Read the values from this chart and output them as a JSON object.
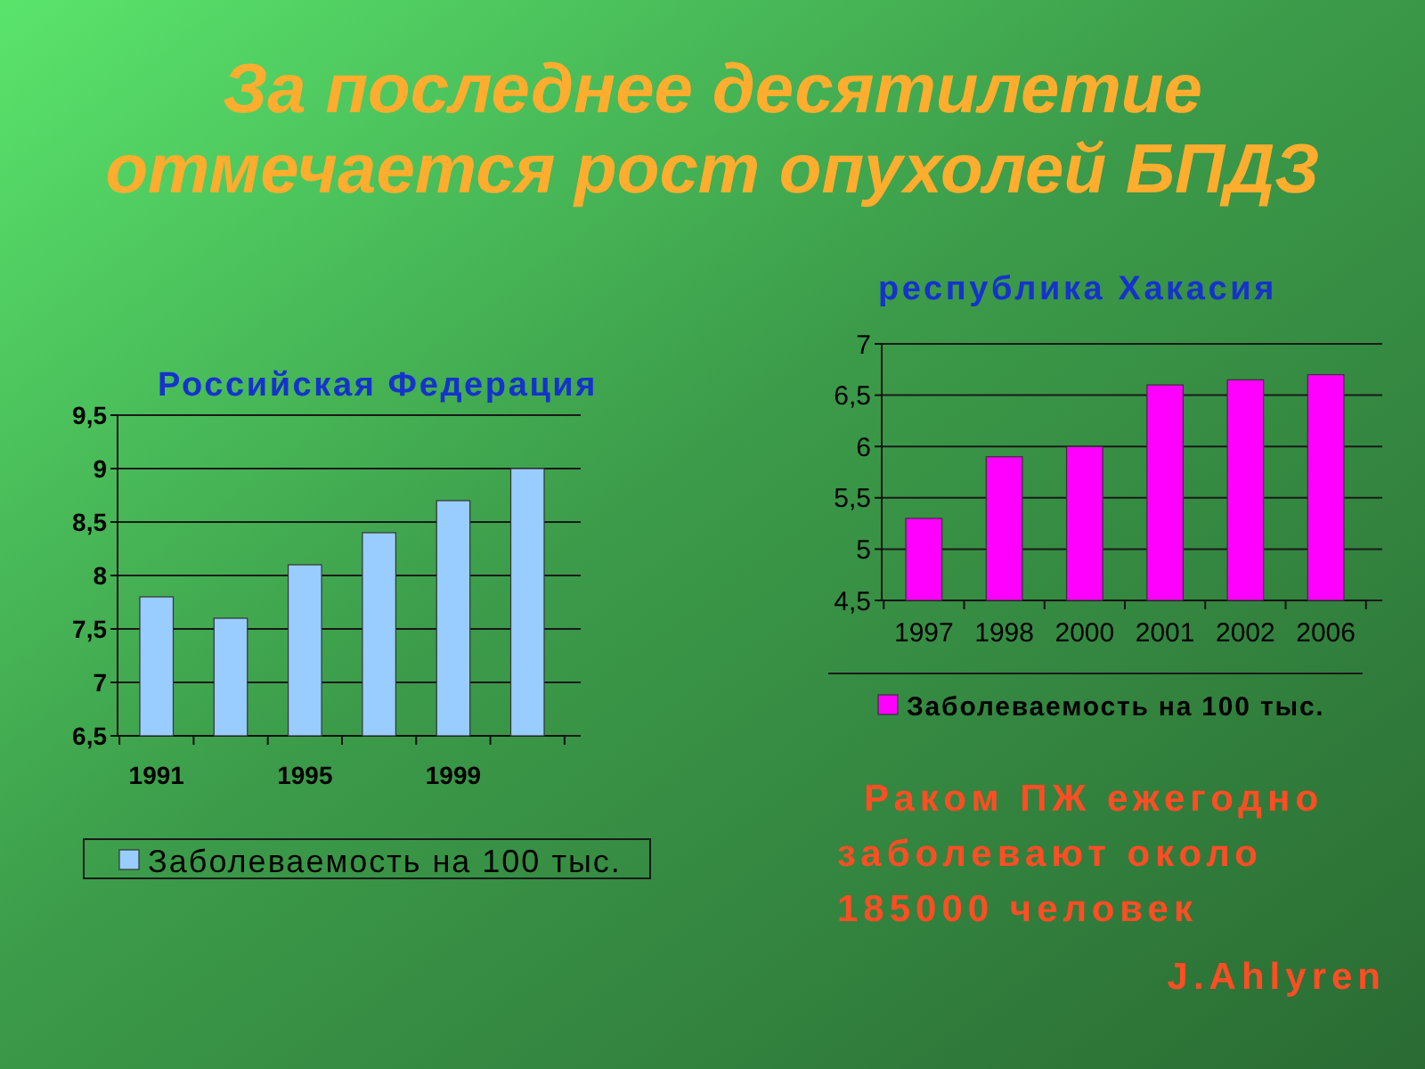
{
  "chart_data": [
    {
      "type": "other",
      "title": "За последнее десятилетие отмечается рост опухолей БПДЗ"
    },
    {
      "type": "bar",
      "title": "Российская Федерация",
      "categories": [
        "1991",
        null,
        "1995",
        null,
        "1999",
        null
      ],
      "series": [
        {
          "name": "Заболеваемость на 100 тыс.",
          "color": "#99ccff",
          "values": [
            7.8,
            7.6,
            8.1,
            8.4,
            8.7,
            9.0
          ]
        }
      ],
      "ylim": [
        6.5,
        9.5
      ],
      "yticks": [
        {
          "value": 6.5,
          "label": "6,5"
        },
        7,
        {
          "value": 7.5,
          "label": "7,5"
        },
        8,
        {
          "value": 8.5,
          "label": "8,5"
        },
        9,
        {
          "value": 9.5,
          "label": "9,5"
        }
      ],
      "grid": "y",
      "legend": "bottom"
    },
    {
      "type": "bar",
      "title": "республика Хакасия",
      "categories": [
        "1997",
        "1998",
        "2000",
        "2001",
        "2002",
        "2006"
      ],
      "series": [
        {
          "name": "Заболеваемость на 100 тыс.",
          "color": "#ff00ff",
          "values": [
            5.3,
            5.9,
            6.0,
            6.6,
            6.65,
            6.7
          ]
        }
      ],
      "ylim": [
        4.5,
        7
      ],
      "yticks": [
        {
          "value": 4.5,
          "label": "4,5"
        },
        5,
        {
          "value": 5.5,
          "label": "5,5"
        },
        6,
        {
          "value": 6.5,
          "label": "6,5"
        },
        7
      ],
      "grid": "y",
      "legend": "bottom",
      "annotations": [
        "Раком ПЖ ежегодно заболевают около 185000 человек",
        "J.Ahlyren"
      ]
    }
  ]
}
